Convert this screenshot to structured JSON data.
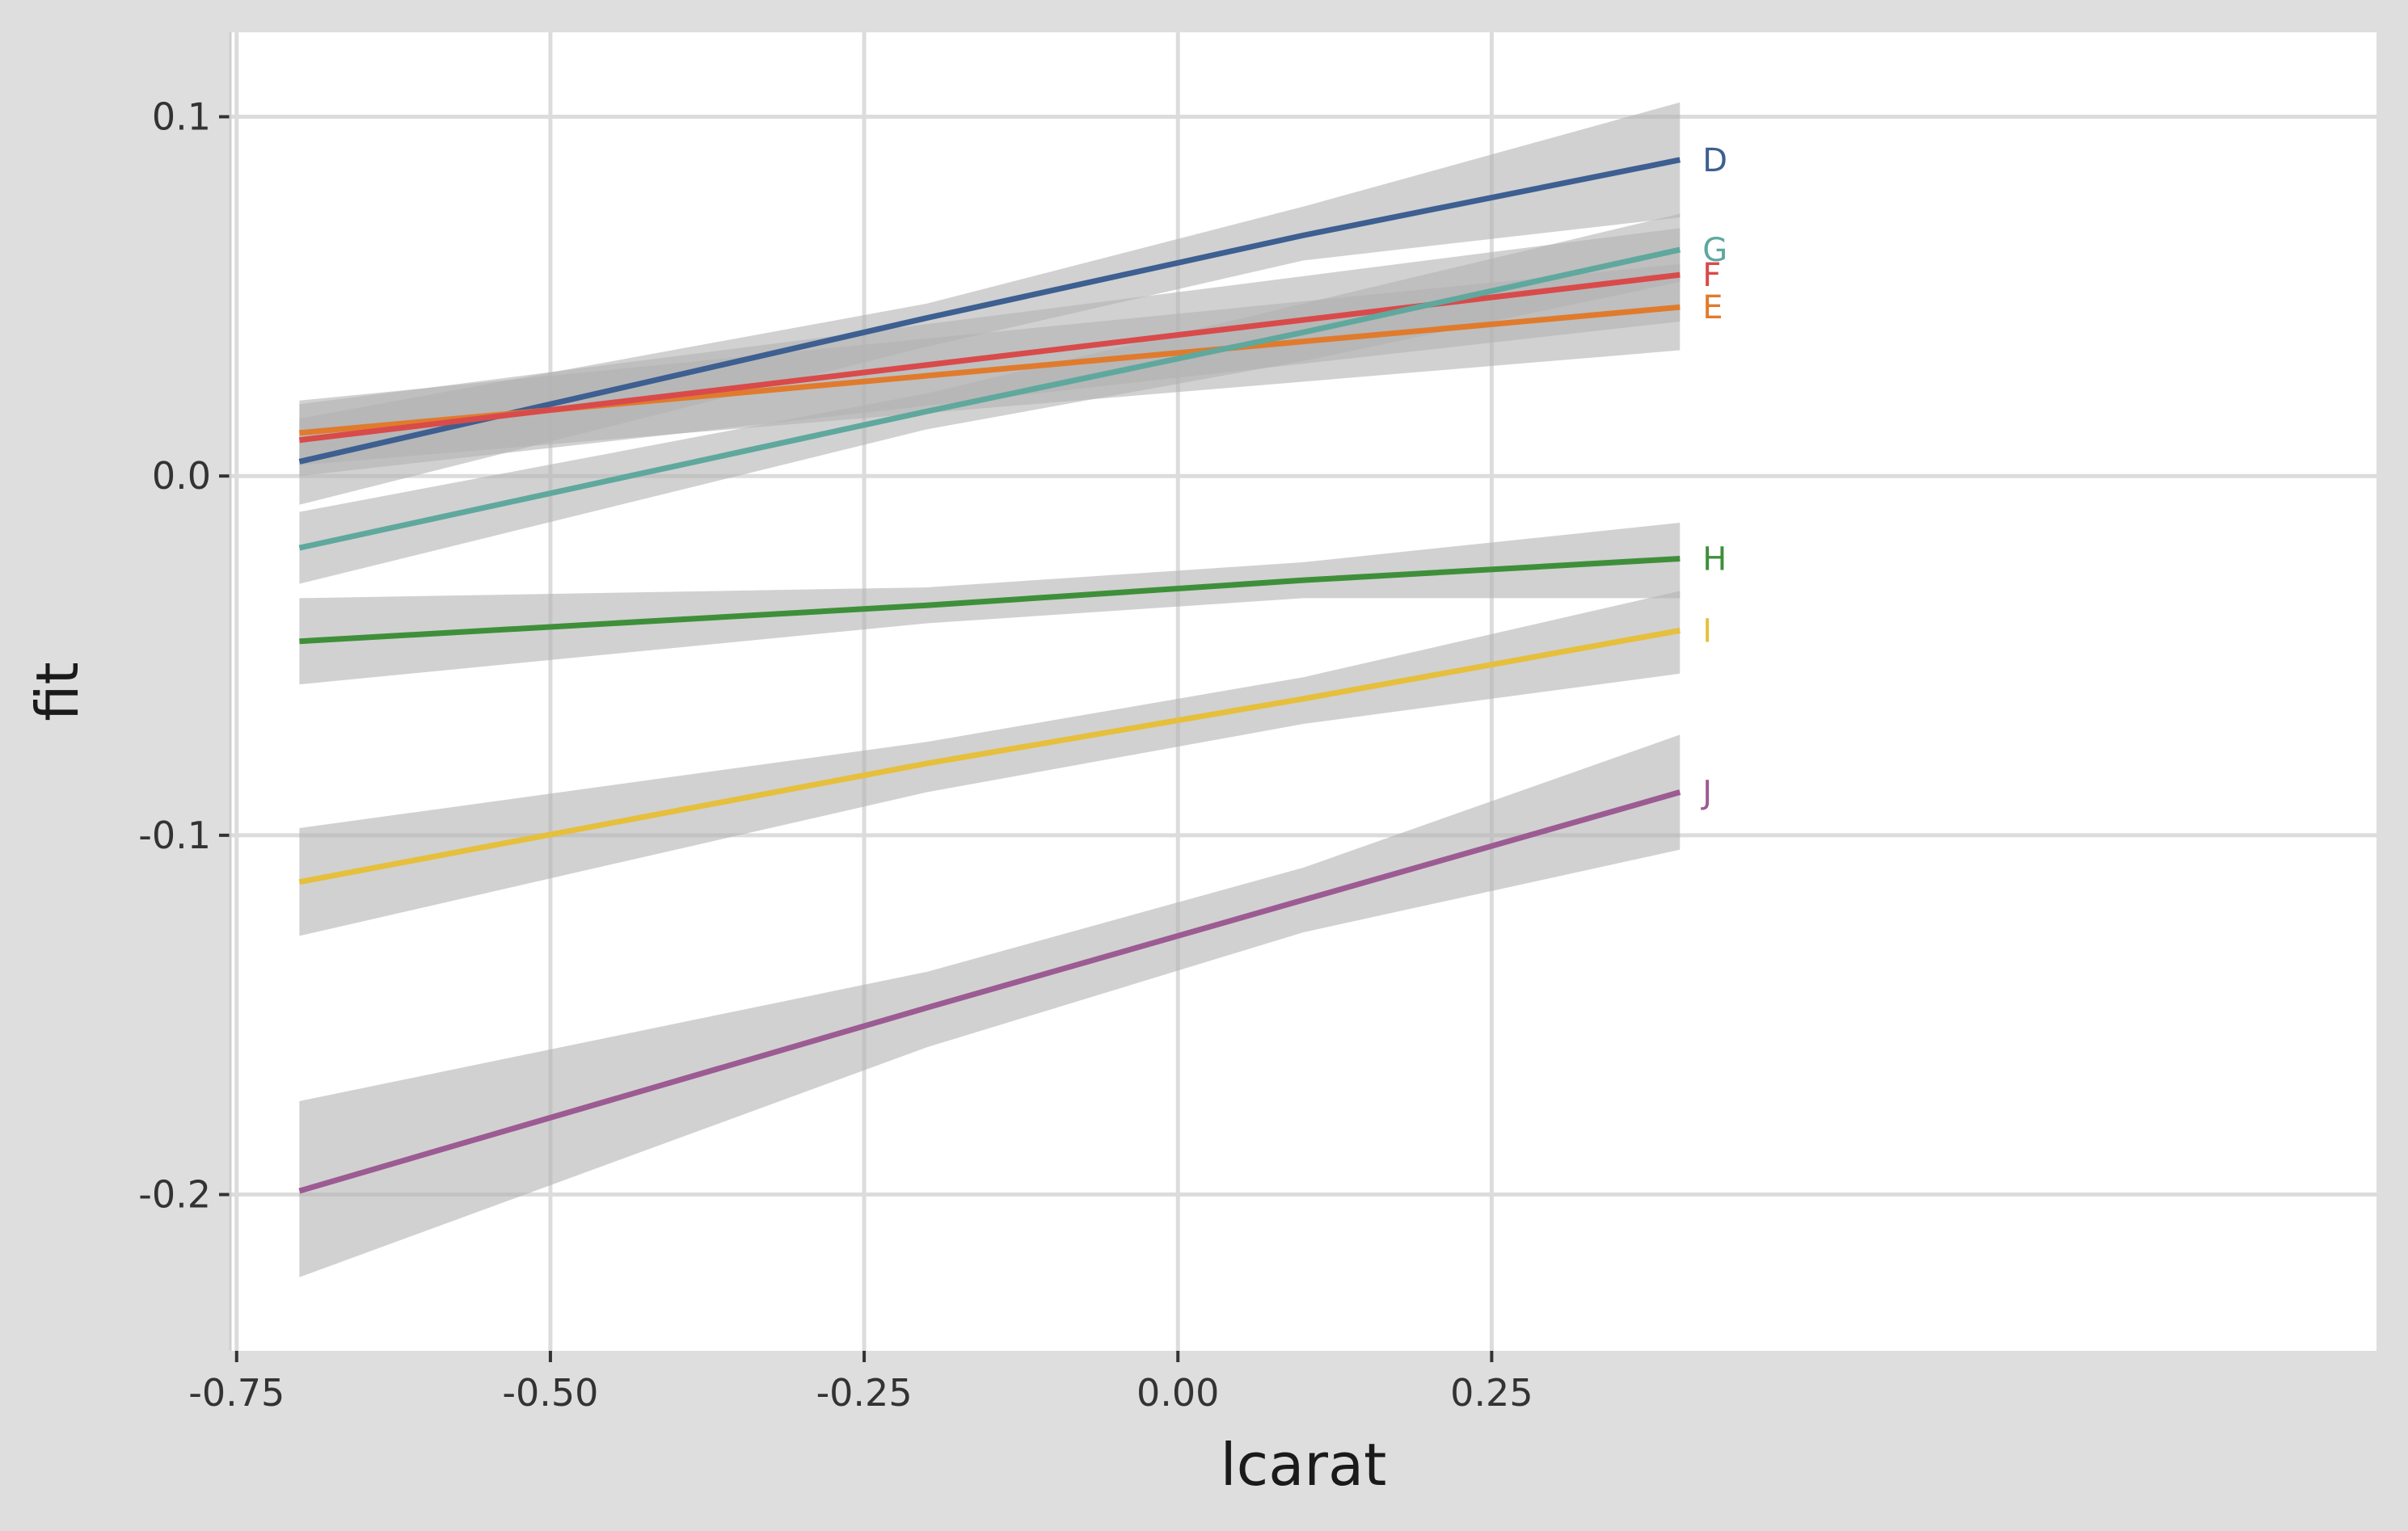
{
  "chart_data": {
    "type": "line",
    "xlabel": "lcarat",
    "ylabel": "fit",
    "xlim": [
      -0.755,
      0.955
    ],
    "ylim": [
      -0.2435,
      0.1235
    ],
    "x_ticks": [
      -0.75,
      -0.5,
      -0.25,
      0.0,
      0.25
    ],
    "x_tick_labels": [
      "-0.75",
      "-0.50",
      "-0.25",
      "0.00",
      "0.25"
    ],
    "y_ticks": [
      -0.2,
      -0.1,
      0.0,
      0.1
    ],
    "y_tick_labels": [
      "-0.2",
      "-0.1",
      "0.0",
      "0.1"
    ],
    "grid": true,
    "confidence_band_color": "#b3b3b3",
    "series": [
      {
        "name": "D",
        "color": "#3d5f91",
        "x": [
          -0.7,
          -0.2,
          0.1,
          0.4
        ],
        "y": [
          0.004,
          0.044,
          0.067,
          0.088
        ],
        "lower": [
          -0.008,
          0.036,
          0.06,
          0.072
        ],
        "upper": [
          0.016,
          0.048,
          0.075,
          0.104
        ]
      },
      {
        "name": "E",
        "color": "#e07b2e",
        "x": [
          -0.7,
          0.4
        ],
        "y": [
          0.012,
          0.047
        ],
        "lower": [
          0.003,
          0.035
        ],
        "upper": [
          0.021,
          0.059
        ]
      },
      {
        "name": "F",
        "color": "#d94a4a",
        "x": [
          -0.7,
          0.4
        ],
        "y": [
          0.01,
          0.056
        ],
        "lower": [
          0.0,
          0.043
        ],
        "upper": [
          0.02,
          0.069
        ]
      },
      {
        "name": "G",
        "color": "#5fa89e",
        "x": [
          -0.7,
          -0.2,
          0.1,
          0.4
        ],
        "y": [
          -0.02,
          0.018,
          0.04,
          0.063
        ],
        "lower": [
          -0.03,
          0.013,
          0.032,
          0.054
        ],
        "upper": [
          -0.01,
          0.023,
          0.048,
          0.073
        ]
      },
      {
        "name": "H",
        "color": "#3f8f3a",
        "x": [
          -0.7,
          -0.2,
          0.1,
          0.4
        ],
        "y": [
          -0.046,
          -0.036,
          -0.029,
          -0.023
        ],
        "lower": [
          -0.058,
          -0.041,
          -0.034,
          -0.034
        ],
        "upper": [
          -0.034,
          -0.031,
          -0.024,
          -0.013
        ]
      },
      {
        "name": "I",
        "color": "#e6bf3c",
        "x": [
          -0.7,
          -0.2,
          0.1,
          0.4
        ],
        "y": [
          -0.113,
          -0.08,
          -0.062,
          -0.043
        ],
        "lower": [
          -0.128,
          -0.088,
          -0.069,
          -0.055
        ],
        "upper": [
          -0.098,
          -0.074,
          -0.056,
          -0.032
        ]
      },
      {
        "name": "J",
        "color": "#9c5b92",
        "x": [
          -0.7,
          -0.2,
          0.1,
          0.4
        ],
        "y": [
          -0.199,
          -0.148,
          -0.118,
          -0.088
        ],
        "lower": [
          -0.223,
          -0.159,
          -0.127,
          -0.104
        ],
        "upper": [
          -0.174,
          -0.138,
          -0.109,
          -0.072
        ]
      }
    ]
  }
}
